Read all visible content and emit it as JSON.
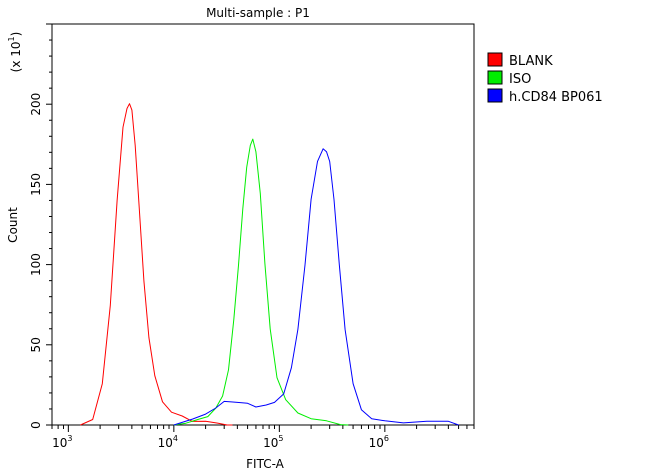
{
  "chart_data": {
    "type": "line",
    "title": "Multi-sample : P1",
    "xlabel": "FITC-A",
    "ylabel": "Count",
    "y_multiplier": {
      "base": "x 10",
      "exponent": "1"
    },
    "x_scale": "log",
    "xlim": [
      700,
      7000000
    ],
    "ylim": [
      0,
      250
    ],
    "x_ticks": [
      {
        "base": "10",
        "exp": "3",
        "value": 1000
      },
      {
        "base": "10",
        "exp": "4",
        "value": 10000
      },
      {
        "base": "10",
        "exp": "5",
        "value": 100000
      },
      {
        "base": "10",
        "exp": "6",
        "value": 1000000
      }
    ],
    "y_ticks": [
      "0",
      "50",
      "100",
      "150",
      "200"
    ],
    "grid": false,
    "legend_position": "right",
    "series": [
      {
        "name": "BLANK",
        "color": "#ff0000",
        "x": [
          1300,
          1700,
          2100,
          2500,
          2900,
          3300,
          3600,
          3800,
          4000,
          4300,
          4700,
          5200,
          5800,
          6600,
          7800,
          9500,
          12000,
          15000,
          20000,
          26000,
          32000,
          36000
        ],
        "y": [
          0,
          4,
          25,
          75,
          140,
          185,
          198,
          200,
          196,
          175,
          135,
          90,
          55,
          30,
          15,
          8,
          5,
          3,
          2,
          1,
          0.5,
          0
        ]
      },
      {
        "name": "ISO",
        "color": "#00ee00",
        "x": [
          10000,
          13000,
          17000,
          21000,
          25000,
          29000,
          33000,
          37000,
          41000,
          45000,
          49000,
          53000,
          56000,
          60000,
          66000,
          73000,
          82000,
          95000,
          115000,
          150000,
          200000,
          280000,
          380000,
          450000
        ],
        "y": [
          0,
          1,
          3,
          6,
          10,
          18,
          35,
          65,
          100,
          135,
          160,
          175,
          178,
          170,
          145,
          100,
          60,
          30,
          15,
          8,
          4,
          2,
          1,
          0
        ]
      },
      {
        "name": "h.CD84 BP061",
        "color": "#0000ff",
        "x": [
          10000,
          15000,
          20000,
          25000,
          30000,
          35000,
          40000,
          50000,
          60000,
          75000,
          90000,
          110000,
          130000,
          150000,
          175000,
          200000,
          230000,
          260000,
          280000,
          300000,
          330000,
          370000,
          420000,
          500000,
          600000,
          750000,
          1000000,
          1500000,
          2500000,
          4000000,
          5000000
        ],
        "y": [
          0,
          3,
          7,
          11,
          14,
          15,
          14,
          13,
          12,
          12,
          14,
          20,
          35,
          60,
          100,
          140,
          165,
          172,
          170,
          165,
          140,
          100,
          60,
          25,
          10,
          4,
          2,
          2,
          2,
          2,
          0
        ]
      }
    ]
  }
}
